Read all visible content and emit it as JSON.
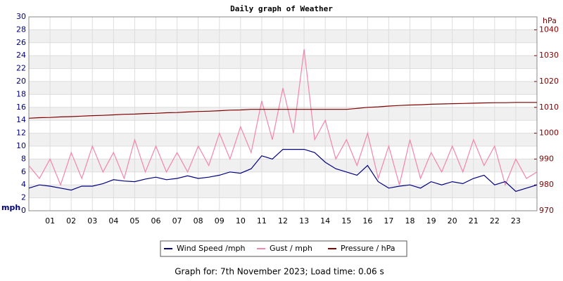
{
  "chart_data": {
    "type": "line",
    "title": "Daily graph of Weather",
    "y_label": "mph",
    "y2_label": "hPa",
    "x": [
      0,
      0.5,
      1,
      1.5,
      2,
      2.5,
      3,
      3.5,
      4,
      4.5,
      5,
      5.5,
      6,
      6.5,
      7,
      7.5,
      8,
      8.5,
      9,
      9.5,
      10,
      10.5,
      11,
      11.5,
      12,
      12.5,
      13,
      13.5,
      14,
      14.5,
      15,
      15.5,
      16,
      16.5,
      17,
      17.5,
      18,
      18.5,
      19,
      19.5,
      20,
      20.5,
      21,
      21.5,
      22,
      22.5,
      23,
      23.5,
      24
    ],
    "series": [
      {
        "name": "Wind Speed /mph",
        "color": "#000080",
        "values": [
          3.5,
          4,
          3.8,
          3.5,
          3.2,
          3.8,
          3.8,
          4.2,
          4.8,
          4.6,
          4.5,
          4.9,
          5.2,
          4.8,
          5,
          5.4,
          5,
          5.2,
          5.5,
          6,
          5.8,
          6.5,
          8.5,
          8,
          9.5,
          9.5,
          9.5,
          9,
          7.5,
          6.5,
          6,
          5.5,
          7,
          4.5,
          3.5,
          3.8,
          4,
          3.5,
          4.5,
          4,
          4.5,
          4.2,
          5,
          5.5,
          4,
          4.5,
          3,
          3.5,
          4
        ]
      },
      {
        "name": "Gust / mph",
        "color": "#f585aa",
        "values": [
          7,
          5,
          8,
          4,
          9,
          5,
          10,
          6,
          9,
          5,
          11,
          6,
          10,
          6,
          9,
          6,
          10,
          7,
          12,
          8,
          13,
          9,
          17,
          11,
          19,
          12,
          25,
          11,
          14,
          8,
          11,
          7,
          12,
          5,
          10,
          4,
          11,
          5,
          9,
          6,
          10,
          6,
          11,
          7,
          10,
          4,
          8,
          5,
          6
        ]
      },
      {
        "name": "Pressure / hPa",
        "color": "#800000",
        "axis": "y2",
        "values": [
          1005.8,
          1006,
          1006.1,
          1006.3,
          1006.4,
          1006.6,
          1006.8,
          1006.9,
          1007.1,
          1007.3,
          1007.4,
          1007.6,
          1007.7,
          1007.9,
          1008,
          1008.2,
          1008.4,
          1008.5,
          1008.7,
          1008.9,
          1009,
          1009.2,
          1009.2,
          1009.2,
          1009.2,
          1009.2,
          1009.2,
          1009.2,
          1009.2,
          1009.2,
          1009.2,
          1009.6,
          1010,
          1010.2,
          1010.5,
          1010.7,
          1010.9,
          1011,
          1011.2,
          1011.3,
          1011.4,
          1011.5,
          1011.6,
          1011.7,
          1011.8,
          1011.8,
          1011.9,
          1011.9,
          1011.9
        ]
      }
    ],
    "xlim": [
      0,
      24
    ],
    "xticks": [
      {
        "value": 1,
        "label": "01"
      },
      {
        "value": 2,
        "label": "02"
      },
      {
        "value": 3,
        "label": "03"
      },
      {
        "value": 4,
        "label": "04"
      },
      {
        "value": 5,
        "label": "05"
      },
      {
        "value": 6,
        "label": "06"
      },
      {
        "value": 7,
        "label": "07"
      },
      {
        "value": 8,
        "label": "08"
      },
      {
        "value": 9,
        "label": "09"
      },
      {
        "value": 10,
        "label": "10"
      },
      {
        "value": 11,
        "label": "11"
      },
      {
        "value": 12,
        "label": "12"
      },
      {
        "value": 13,
        "label": "13"
      },
      {
        "value": 14,
        "label": "14"
      },
      {
        "value": 15,
        "label": "15"
      },
      {
        "value": 16,
        "label": "16"
      },
      {
        "value": 17,
        "label": "17"
      },
      {
        "value": 18,
        "label": "18"
      },
      {
        "value": 19,
        "label": "19"
      },
      {
        "value": 20,
        "label": "20"
      },
      {
        "value": 21,
        "label": "21"
      },
      {
        "value": 22,
        "label": "22"
      },
      {
        "value": 23,
        "label": "23"
      }
    ],
    "ylim": [
      0,
      30
    ],
    "yticks": [
      0,
      2,
      4,
      6,
      8,
      10,
      12,
      14,
      16,
      18,
      20,
      22,
      24,
      26,
      28,
      30
    ],
    "y2lim": [
      970,
      1045
    ],
    "y2ticks": [
      970,
      980,
      990,
      1000,
      1010,
      1020,
      1030,
      1040
    ],
    "grid": true,
    "footer": "Graph for: 7th November 2023; Load time: 0.06 s"
  }
}
